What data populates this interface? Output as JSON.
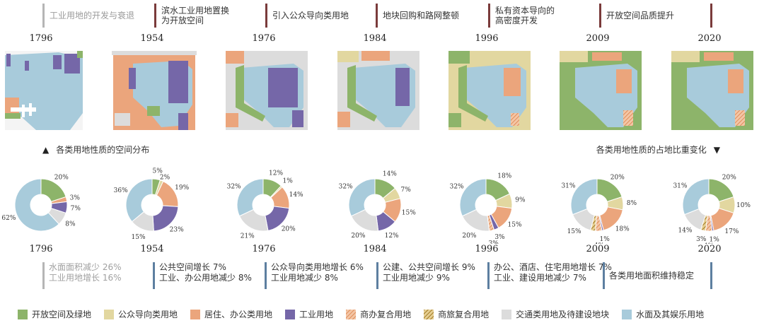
{
  "phases": [
    {
      "lines": [
        "工业用地的开发与衰退"
      ]
    },
    {
      "lines": [
        "滨水工业用地置换",
        "为开放空间"
      ]
    },
    {
      "lines": [
        "引入公众导向类用地"
      ]
    },
    {
      "lines": [
        "地块回购和路网整顿"
      ]
    },
    {
      "lines": [
        "私有资本导向的",
        "高密度开发"
      ]
    },
    {
      "lines": [
        "开放空间品质提升"
      ]
    }
  ],
  "years": [
    "1796",
    "1954",
    "1976",
    "1984",
    "1996",
    "2009",
    "2020"
  ],
  "caption_left": "各类用地性质的空间分布",
  "caption_right": "各类用地性质的占地比重变化",
  "changes": [
    {
      "lines": [
        "水面面积减少 26%",
        "工业用地增长 16%"
      ]
    },
    {
      "lines": [
        "公共空间增长 7%",
        "工业、办公用地减少 8%"
      ]
    },
    {
      "lines": [
        "公众导向类用地增长 6%",
        "工业用地减少 8%"
      ]
    },
    {
      "lines": [
        "公建、公共空间增长 9%",
        "工业用地减少 9%"
      ]
    },
    {
      "lines": [
        "办公、酒店、住宅用地增长 7%",
        "工业、建设用地减少 7%"
      ]
    },
    {
      "lines": [
        "各类用地面积维持稳定"
      ]
    }
  ],
  "legend": [
    {
      "label": "开放空间及绿地",
      "color": "#8db46a",
      "pattern": "solid"
    },
    {
      "label": "公众导向类用地",
      "color": "#e2d7a0",
      "pattern": "solid"
    },
    {
      "label": "居住、办公类用地",
      "color": "#eba57c",
      "pattern": "solid"
    },
    {
      "label": "工业用地",
      "color": "#7567a8",
      "pattern": "solid"
    },
    {
      "label": "商办复合用地",
      "color": "#eba57c",
      "pattern": "hatch"
    },
    {
      "label": "商旅复合用地",
      "color": "#c79a3c",
      "pattern": "hatch"
    },
    {
      "label": "交通类用地及待建设地块",
      "color": "#dcdcdc",
      "pattern": "solid"
    },
    {
      "label": "水面及其娱乐用地",
      "color": "#a8cbdb",
      "pattern": "solid"
    }
  ],
  "chart_data": [
    {
      "type": "pie",
      "title": "1796",
      "series": [
        {
          "values": [
            20,
            0,
            3,
            7,
            0,
            0,
            8,
            62
          ]
        }
      ],
      "labels": [
        "20%",
        "",
        "3%",
        "7%",
        "",
        "",
        "8%",
        "62%"
      ]
    },
    {
      "type": "pie",
      "title": "1954",
      "series": [
        {
          "values": [
            5,
            2,
            19,
            23,
            0,
            0,
            15,
            36
          ]
        }
      ],
      "labels": [
        "5%",
        "2%",
        "19%",
        "23%",
        "",
        "",
        "15%",
        "36%"
      ]
    },
    {
      "type": "pie",
      "title": "1976",
      "series": [
        {
          "values": [
            12,
            1,
            14,
            20,
            0,
            0,
            21,
            32
          ]
        }
      ],
      "labels": [
        "12%",
        "1%",
        "14%",
        "20%",
        "",
        "",
        "21%",
        "32%"
      ]
    },
    {
      "type": "pie",
      "title": "1984",
      "series": [
        {
          "values": [
            14,
            7,
            15,
            12,
            0,
            0,
            20,
            32
          ]
        }
      ],
      "labels": [
        "14%",
        "7%",
        "15%",
        "12%",
        "",
        "",
        "20%",
        "32%"
      ]
    },
    {
      "type": "pie",
      "title": "1996",
      "series": [
        {
          "values": [
            18,
            9,
            15,
            3,
            3,
            0,
            20,
            32
          ]
        }
      ],
      "labels": [
        "18%",
        "9%",
        "15%",
        "3%",
        "3%",
        "",
        "20%",
        "32%"
      ]
    },
    {
      "type": "pie",
      "title": "2009",
      "series": [
        {
          "values": [
            20,
            8,
            18,
            1,
            4,
            3,
            15,
            31
          ]
        }
      ],
      "labels": [
        "20%",
        "8%",
        "18%",
        "1%",
        "4%",
        "3%",
        "15%",
        "31%"
      ]
    },
    {
      "type": "pie",
      "title": "2020",
      "series": [
        {
          "values": [
            20,
            10,
            17,
            1,
            4,
            3,
            14,
            31
          ]
        }
      ],
      "labels": [
        "20%",
        "10%",
        "17%",
        "1%",
        "4%",
        "3%",
        "14%",
        "31%"
      ]
    }
  ]
}
